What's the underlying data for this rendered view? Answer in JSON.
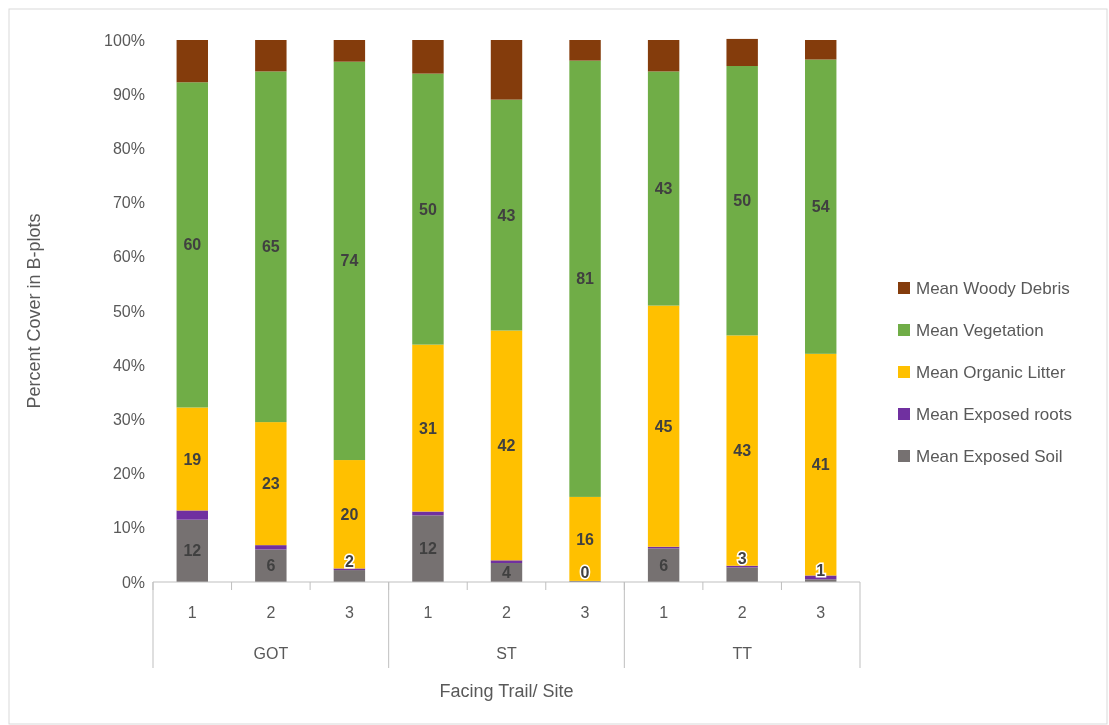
{
  "chart_data": {
    "type": "bar",
    "stacked": true,
    "xlabel": "Facing Trail/ Site",
    "ylabel": "Percent Cover in B-plots",
    "categories": [
      "1",
      "2",
      "3",
      "1",
      "2",
      "3",
      "1",
      "2",
      "3"
    ],
    "annotations": [
      "GOT",
      "ST",
      "TT"
    ],
    "ylim": [
      0,
      100
    ],
    "yticks": [
      {
        "value": 0,
        "label": "0%"
      },
      {
        "value": 10,
        "label": "10%"
      },
      {
        "value": 20,
        "label": "20%"
      },
      {
        "value": 30,
        "label": "30%"
      },
      {
        "value": 40,
        "label": "40%"
      },
      {
        "value": 50,
        "label": "50%"
      },
      {
        "value": 60,
        "label": "60%"
      },
      {
        "value": 70,
        "label": "70%"
      },
      {
        "value": 80,
        "label": "80%"
      },
      {
        "value": 90,
        "label": "90%"
      },
      {
        "value": 100,
        "label": "100%"
      }
    ],
    "legend": "right",
    "series": [
      {
        "name": "Mean Exposed Soil",
        "color": "#767171",
        "values": [
          11.5,
          6,
          2.2,
          12.3,
          3.5,
          0.2,
          6.2,
          2.7,
          0.5
        ],
        "value_labels": [
          "12",
          "6",
          "2",
          "12",
          "4",
          "0",
          "6",
          "3",
          "1"
        ]
      },
      {
        "name": "Mean Exposed roots",
        "color": "#7030a0",
        "values": [
          1.7,
          0.8,
          0.3,
          0.7,
          0.5,
          0,
          0.3,
          0.3,
          0.7
        ]
      },
      {
        "name": "Mean Organic Litter",
        "color": "#ffc000",
        "values": [
          19,
          22.7,
          20,
          30.8,
          42.4,
          15.5,
          44.5,
          42.5,
          40.9
        ],
        "value_labels": [
          "19",
          "23",
          "20",
          "31",
          "42",
          "16",
          "45",
          "43",
          "41"
        ]
      },
      {
        "name": "Mean Vegetation",
        "color": "#70ad47",
        "values": [
          60,
          64.7,
          73.5,
          50,
          42.6,
          80.5,
          43.2,
          49.7,
          54.3
        ],
        "value_labels": [
          "60",
          "65",
          "74",
          "50",
          "43",
          "81",
          "43",
          "50",
          "54"
        ]
      },
      {
        "name": "Mean Woody Debris",
        "color": "#843c0c",
        "values": [
          7.8,
          5.8,
          4,
          6.2,
          11,
          3.8,
          5.8,
          5,
          3.6
        ]
      }
    ]
  }
}
